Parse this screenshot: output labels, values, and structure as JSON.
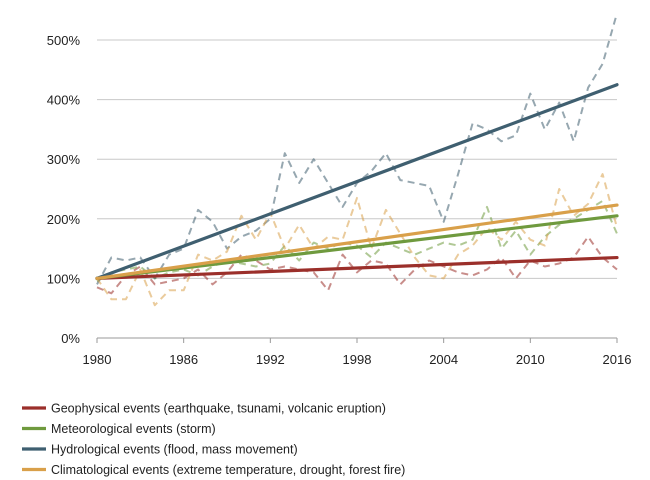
{
  "chart_data": {
    "type": "line",
    "xlim": [
      1980,
      2016
    ],
    "ylim": [
      0,
      500
    ],
    "x_ticks": [
      1980,
      1986,
      1992,
      1998,
      2004,
      2010,
      2016
    ],
    "y_ticks": [
      0,
      100,
      200,
      300,
      400,
      500
    ],
    "y_tick_labels": [
      "0%",
      "100%",
      "200%",
      "300%",
      "400%",
      "500%"
    ],
    "grid": {
      "horizontal": true,
      "vertical": false
    },
    "legend_position": "bottom",
    "series": [
      {
        "name": "Geophysical events (earthquake, tsunami, volcanic eruption)",
        "color": "#9b2f2a",
        "style": "dashed-with-trend",
        "x": [
          1980,
          1981,
          1982,
          1983,
          1984,
          1985,
          1986,
          1987,
          1988,
          1989,
          1990,
          1991,
          1992,
          1993,
          1994,
          1995,
          1996,
          1997,
          1998,
          1999,
          2000,
          2001,
          2002,
          2003,
          2004,
          2005,
          2006,
          2007,
          2008,
          2009,
          2010,
          2011,
          2012,
          2013,
          2014,
          2015,
          2016
        ],
        "values": [
          85,
          75,
          105,
          120,
          90,
          95,
          100,
          115,
          90,
          110,
          140,
          130,
          115,
          120,
          115,
          110,
          80,
          140,
          110,
          130,
          125,
          90,
          115,
          130,
          120,
          110,
          105,
          115,
          135,
          100,
          130,
          120,
          125,
          135,
          170,
          135,
          115
        ],
        "trend": [
          100,
          135
        ]
      },
      {
        "name": "Meteorological events (storm)",
        "color": "#6f9a3e",
        "style": "dashed-with-trend",
        "x": [
          1980,
          1981,
          1982,
          1983,
          1984,
          1985,
          1986,
          1987,
          1988,
          1989,
          1990,
          1991,
          1992,
          1993,
          1994,
          1995,
          1996,
          1997,
          1998,
          1999,
          2000,
          2001,
          2002,
          2003,
          2004,
          2005,
          2006,
          2007,
          2008,
          2009,
          2010,
          2011,
          2012,
          2013,
          2014,
          2015,
          2016
        ],
        "values": [
          95,
          110,
          115,
          120,
          100,
          110,
          115,
          105,
          120,
          130,
          125,
          120,
          125,
          155,
          130,
          160,
          150,
          160,
          155,
          135,
          160,
          150,
          140,
          150,
          160,
          155,
          165,
          220,
          150,
          180,
          140,
          170,
          190,
          200,
          215,
          230,
          175
        ],
        "trend": [
          100,
          205
        ]
      },
      {
        "name": "Hydrological events (flood, mass movement)",
        "color": "#3f5f70",
        "style": "dashed-with-trend",
        "x": [
          1980,
          1981,
          1982,
          1983,
          1984,
          1985,
          1986,
          1987,
          1988,
          1989,
          1990,
          1991,
          1992,
          1993,
          1994,
          1995,
          1996,
          1997,
          1998,
          1999,
          2000,
          2001,
          2002,
          2003,
          2004,
          2005,
          2006,
          2007,
          2008,
          2009,
          2010,
          2011,
          2012,
          2013,
          2014,
          2015,
          2016
        ],
        "values": [
          90,
          135,
          130,
          135,
          100,
          140,
          150,
          215,
          195,
          150,
          170,
          180,
          200,
          310,
          260,
          300,
          260,
          220,
          260,
          280,
          310,
          265,
          260,
          255,
          195,
          275,
          360,
          350,
          330,
          340,
          410,
          350,
          395,
          330,
          420,
          460,
          545
        ],
        "trend": [
          100,
          425
        ]
      },
      {
        "name": "Climatological events (extreme temperature, drought, forest fire)",
        "color": "#d9a04a",
        "style": "dashed-with-trend",
        "x": [
          1980,
          1981,
          1982,
          1983,
          1984,
          1985,
          1986,
          1987,
          1988,
          1989,
          1990,
          1991,
          1992,
          1993,
          1994,
          1995,
          1996,
          1997,
          1998,
          1999,
          2000,
          2001,
          2002,
          2003,
          2004,
          2005,
          2006,
          2007,
          2008,
          2009,
          2010,
          2011,
          2012,
          2013,
          2014,
          2015,
          2016
        ],
        "values": [
          100,
          65,
          65,
          115,
          55,
          80,
          80,
          140,
          130,
          145,
          205,
          165,
          210,
          150,
          190,
          150,
          170,
          165,
          235,
          150,
          215,
          175,
          135,
          105,
          100,
          140,
          155,
          185,
          165,
          195,
          165,
          155,
          250,
          205,
          225,
          275,
          185
        ],
        "trend": [
          100,
          223
        ]
      }
    ]
  }
}
